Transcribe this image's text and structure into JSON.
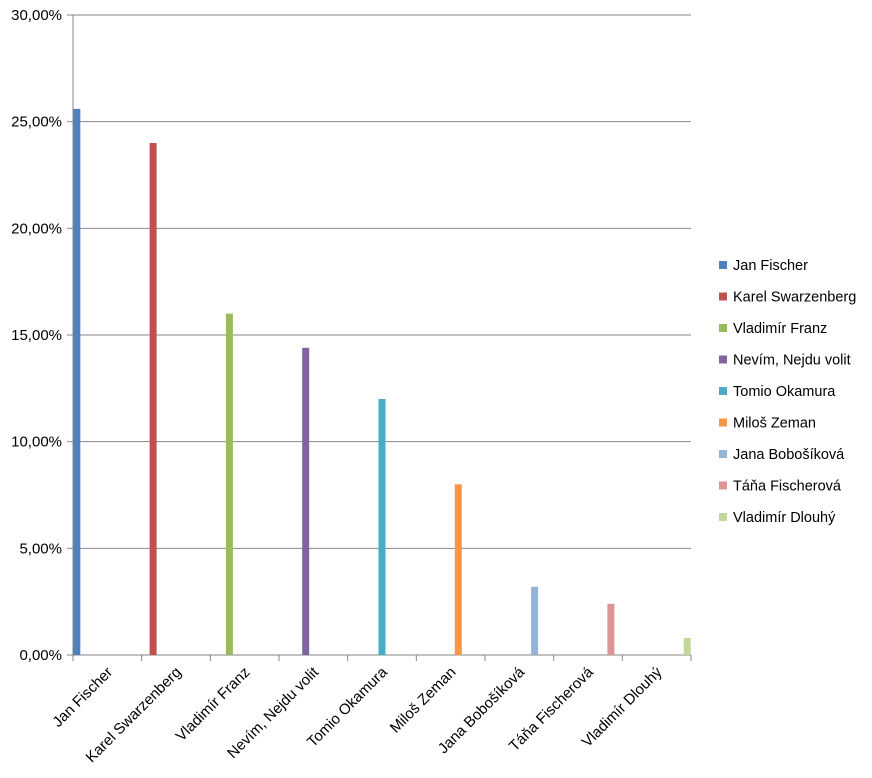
{
  "chart_data": {
    "type": "bar",
    "categories": [
      "Jan Fischer",
      "Karel Swarzenberg",
      "Vladimír Franz",
      "Nevím, Nejdu volit",
      "Tomio Okamura",
      "Miloš Zeman",
      "Jana Bobošíková",
      "Táňa Fischerová",
      "Vladimír Dlouhý"
    ],
    "series": [
      {
        "name": "Jan Fischer",
        "color": "#4F81BD",
        "value": 25.6
      },
      {
        "name": "Karel Swarzenberg",
        "color": "#C0504D",
        "value": 24.0
      },
      {
        "name": "Vladimír Franz",
        "color": "#9BBB59",
        "value": 16.0
      },
      {
        "name": "Nevím, Nejdu volit",
        "color": "#8064A2",
        "value": 14.4
      },
      {
        "name": "Tomio Okamura",
        "color": "#4BACC6",
        "value": 12.0
      },
      {
        "name": "Miloš Zeman",
        "color": "#F79646",
        "value": 8.0
      },
      {
        "name": "Jana Bobošíková",
        "color": "#95B3D7",
        "value": 3.2
      },
      {
        "name": "Táňa Fischerová",
        "color": "#D99694",
        "value": 2.4
      },
      {
        "name": "Vladimír Dlouhý",
        "color": "#C3D69B",
        "value": 0.8
      }
    ],
    "y_ticks": [
      "0,00%",
      "5,00%",
      "10,00%",
      "15,00%",
      "20,00%",
      "25,00%",
      "30,00%"
    ],
    "ylim": [
      0,
      30
    ],
    "ytick_step": 5,
    "grid": true,
    "legend_position": "right",
    "title": "",
    "xlabel": "",
    "ylabel": ""
  }
}
